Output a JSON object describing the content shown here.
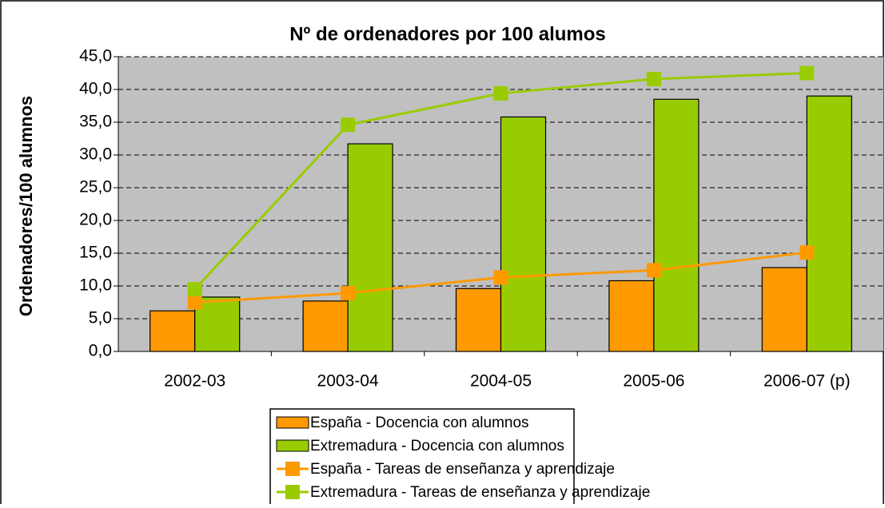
{
  "chart_data": {
    "type": "bar",
    "title": "Nº de ordenadores por 100 alumos",
    "y_label": "Ordenadores/100 alumnos",
    "categories": [
      "2002-03",
      "2003-04",
      "2004-05",
      "2005-06",
      "2006-07 (p)"
    ],
    "series": [
      {
        "name": "España - Docencia con alumnos",
        "type": "bar",
        "color": "#ff9900",
        "values": [
          6.2,
          7.7,
          9.6,
          10.8,
          12.8
        ]
      },
      {
        "name": "Extremadura - Docencia con alumnos",
        "type": "bar",
        "color": "#99cc00",
        "values": [
          8.3,
          31.7,
          35.8,
          38.5,
          39.0
        ]
      },
      {
        "name": "España - Tareas de enseñanza y aprendizaje",
        "type": "line",
        "color": "#ff9900",
        "values": [
          7.5,
          8.9,
          11.3,
          12.4,
          15.1
        ]
      },
      {
        "name": "Extremadura - Tareas de enseñanza y aprendizaje",
        "type": "line",
        "color": "#99cc00",
        "values": [
          9.5,
          34.6,
          39.4,
          41.6,
          42.5
        ]
      }
    ],
    "ylim": [
      0,
      45
    ],
    "yticks": [
      {
        "value": 0,
        "label": "0,0"
      },
      {
        "value": 5,
        "label": "5,0"
      },
      {
        "value": 10,
        "label": "10,0"
      },
      {
        "value": 15,
        "label": "15,0"
      },
      {
        "value": 20,
        "label": "20,0"
      },
      {
        "value": 25,
        "label": "25,0"
      },
      {
        "value": 30,
        "label": "30,0"
      },
      {
        "value": 35,
        "label": "35,0"
      },
      {
        "value": 40,
        "label": "40,0"
      },
      {
        "value": 45,
        "label": "45,0"
      }
    ],
    "grid": true,
    "legend": "bottom"
  }
}
